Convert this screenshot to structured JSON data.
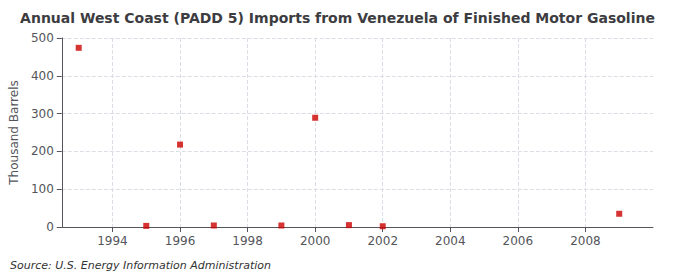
{
  "chart_data": {
    "type": "scatter",
    "title": "Annual West Coast (PADD 5) Imports from Venezuela of Finished Motor Gasoline",
    "ylabel": "Thousand Barrels",
    "annotation": "Source: U.S. Energy Information Administration",
    "x": [
      1993,
      1995,
      1996,
      1997,
      1999,
      2000,
      2001,
      2002,
      2009
    ],
    "values": [
      474,
      3,
      218,
      4,
      4,
      289,
      5,
      2,
      35
    ],
    "color": "#cc0000",
    "marker": "square",
    "xlim": [
      1992.5,
      2010
    ],
    "ylim": [
      0,
      500
    ],
    "xticks": [
      1994,
      1996,
      1998,
      2000,
      2002,
      2004,
      2006,
      2008
    ],
    "yticks": [
      0,
      100,
      200,
      300,
      400,
      500
    ],
    "grid": true
  }
}
